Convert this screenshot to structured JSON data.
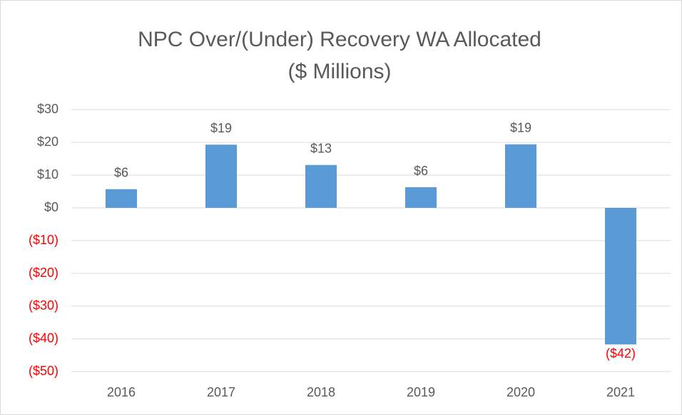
{
  "chart_data": {
    "type": "bar",
    "title": "NPC Over/(Under) Recovery WA Allocated",
    "subtitle": "($ Millions)",
    "categories": [
      "2016",
      "2017",
      "2018",
      "2019",
      "2020",
      "2021"
    ],
    "values": [
      5.7,
      19.3,
      13.1,
      6.3,
      19.4,
      -41.7
    ],
    "value_labels": [
      "$6",
      "$19",
      "$13",
      "$6",
      "$19",
      "($42)"
    ],
    "color": "#5b9bd5",
    "negative_label_color": "#ff0000",
    "ylim": [
      -50,
      30
    ],
    "yticks": [
      {
        "value": -50,
        "label": "($50)"
      },
      {
        "value": -40,
        "label": "($40)"
      },
      {
        "value": -30,
        "label": "($30)"
      },
      {
        "value": -20,
        "label": "($20)"
      },
      {
        "value": -10,
        "label": "($10)"
      },
      {
        "value": 0,
        "label": "$0"
      },
      {
        "value": 10,
        "label": "$10"
      },
      {
        "value": 20,
        "label": "$20"
      },
      {
        "value": 30,
        "label": "$30"
      }
    ],
    "grid": true
  }
}
